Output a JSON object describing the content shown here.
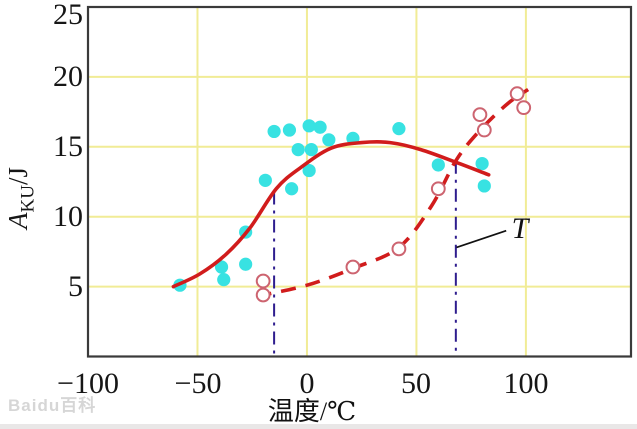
{
  "figure": {
    "watermark": "Baidu百科"
  },
  "chart_data": {
    "type": "scatter",
    "title": "",
    "xlabel": "温度/℃",
    "ylabel": "AKU/J",
    "ylabel_parts": {
      "var": "A",
      "sub": "KU",
      "unit": "/J"
    },
    "xlim": [
      -100,
      148
    ],
    "ylim": [
      0,
      25
    ],
    "xtick_values": [
      -100,
      -50,
      0,
      50,
      100
    ],
    "xtick_labels": [
      "−100",
      "−50",
      "0",
      "50",
      "100"
    ],
    "ytick_values": [
      25,
      20,
      15,
      10,
      5
    ],
    "ytick_labels": [
      "25",
      "20",
      "15",
      "10",
      "5"
    ],
    "grid": true,
    "grid_x": [
      -50,
      0,
      50,
      100
    ],
    "grid_y": [
      5,
      10,
      15,
      20
    ],
    "colors": {
      "grid": "#f1ec96",
      "border": "#3a3a3a",
      "curve_red": "#d11c1c",
      "filled_point": "#38e2e2",
      "open_point_stroke": "#cd6470",
      "dashdot_line": "#2e1d8e",
      "leader": "#111111"
    },
    "series": [
      {
        "name": "filled-cyan-points",
        "type": "scatter",
        "marker": "filled-circle",
        "color": "#38e2e2",
        "points": [
          [
            -58,
            5.1
          ],
          [
            -39,
            6.4
          ],
          [
            -38,
            5.5
          ],
          [
            -28,
            6.6
          ],
          [
            -28,
            8.9
          ],
          [
            -19,
            12.6
          ],
          [
            -7,
            12.0
          ],
          [
            -15,
            16.1
          ],
          [
            -8,
            16.2
          ],
          [
            1,
            16.5
          ],
          [
            6,
            16.4
          ],
          [
            10,
            15.5
          ],
          [
            -4,
            14.8
          ],
          [
            2,
            14.8
          ],
          [
            1,
            13.3
          ],
          [
            21,
            15.6
          ],
          [
            42,
            16.3
          ],
          [
            60,
            13.7
          ],
          [
            80,
            13.8
          ],
          [
            81,
            12.2
          ]
        ]
      },
      {
        "name": "open-red-points",
        "type": "scatter",
        "marker": "open-circle",
        "color": "#cd6470",
        "points": [
          [
            -20,
            5.4
          ],
          [
            -20,
            4.4
          ],
          [
            21,
            6.4
          ],
          [
            42,
            7.7
          ],
          [
            60,
            12.0
          ],
          [
            79,
            17.3
          ],
          [
            81,
            16.2
          ],
          [
            96,
            18.8
          ],
          [
            99,
            17.8
          ]
        ]
      },
      {
        "name": "solid-red-curve",
        "type": "line",
        "style": "solid",
        "color": "#d11c1c",
        "points": [
          [
            -61,
            5.0
          ],
          [
            -49,
            5.9
          ],
          [
            -37,
            7.3
          ],
          [
            -26,
            9.2
          ],
          [
            -14,
            12.0
          ],
          [
            -3,
            13.5
          ],
          [
            11,
            14.9
          ],
          [
            25,
            15.3
          ],
          [
            38,
            15.3
          ],
          [
            52,
            14.8
          ],
          [
            68,
            13.9
          ],
          [
            83,
            13.0
          ]
        ]
      },
      {
        "name": "dashed-red-curve",
        "type": "line",
        "style": "dashed",
        "color": "#d11c1c",
        "points": [
          [
            -23,
            4.3
          ],
          [
            0,
            5.1
          ],
          [
            21,
            6.3
          ],
          [
            42,
            7.8
          ],
          [
            57,
            10.8
          ],
          [
            68,
            14.0
          ],
          [
            78,
            16.0
          ],
          [
            91,
            18.0
          ],
          [
            101,
            19.1
          ]
        ]
      }
    ],
    "reference_lines": [
      {
        "name": "transition-line-left",
        "x": -15,
        "y_top": 11.8,
        "color": "#2e1d8e"
      },
      {
        "name": "transition-line-right",
        "x": 68,
        "y_top": 14.0,
        "color": "#2e1d8e"
      }
    ],
    "annotation": {
      "label": "T",
      "leader_from": [
        68.3,
        7.8
      ],
      "leader_to": [
        91,
        9.0
      ]
    }
  }
}
